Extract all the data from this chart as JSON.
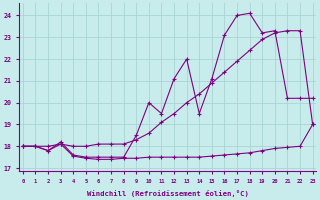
{
  "bg_color": "#c8ecec",
  "grid_color": "#aad4d4",
  "line_color": "#800080",
  "xlabel": "Windchill (Refroidissement éolien,°C)",
  "xlim": [
    -0.3,
    23.3
  ],
  "ylim": [
    16.85,
    24.55
  ],
  "yticks": [
    17,
    18,
    19,
    20,
    21,
    22,
    23,
    24
  ],
  "xticks": [
    0,
    1,
    2,
    3,
    4,
    5,
    6,
    7,
    8,
    9,
    10,
    11,
    12,
    13,
    14,
    15,
    16,
    17,
    18,
    19,
    20,
    21,
    22,
    23
  ],
  "curve_bottom_x": [
    0,
    1,
    2,
    3,
    4,
    5,
    6,
    7,
    8,
    9,
    10,
    11,
    12,
    13,
    14,
    15,
    16,
    17,
    18,
    19,
    20,
    21,
    22,
    23
  ],
  "curve_bottom_y": [
    18.0,
    18.0,
    17.8,
    18.1,
    17.55,
    17.45,
    17.4,
    17.4,
    17.45,
    17.45,
    17.5,
    17.5,
    17.5,
    17.5,
    17.5,
    17.55,
    17.6,
    17.65,
    17.7,
    17.8,
    17.9,
    17.95,
    18.0,
    19.0
  ],
  "curve_mid_x": [
    0,
    1,
    2,
    3,
    4,
    5,
    6,
    7,
    8,
    9,
    10,
    11,
    12,
    13,
    14,
    15,
    16,
    17,
    18,
    19,
    20,
    21,
    22,
    23
  ],
  "curve_mid_y": [
    18.0,
    18.0,
    18.0,
    18.1,
    18.0,
    18.0,
    18.1,
    18.1,
    18.1,
    18.3,
    18.6,
    19.1,
    19.5,
    20.0,
    20.4,
    20.9,
    21.4,
    21.9,
    22.4,
    22.9,
    23.2,
    23.3,
    23.3,
    19.0
  ],
  "curve_top_x": [
    0,
    1,
    2,
    3,
    4,
    5,
    6,
    7,
    8,
    9,
    10,
    11,
    12,
    13,
    14,
    15,
    16,
    17,
    18,
    19,
    20,
    21,
    22,
    23
  ],
  "curve_top_y": [
    18.0,
    18.0,
    17.8,
    18.2,
    17.6,
    17.5,
    17.5,
    17.5,
    17.5,
    18.5,
    20.0,
    19.5,
    21.1,
    22.0,
    19.5,
    21.1,
    23.1,
    24.0,
    24.1,
    23.2,
    23.3,
    20.2,
    20.2,
    20.2
  ]
}
